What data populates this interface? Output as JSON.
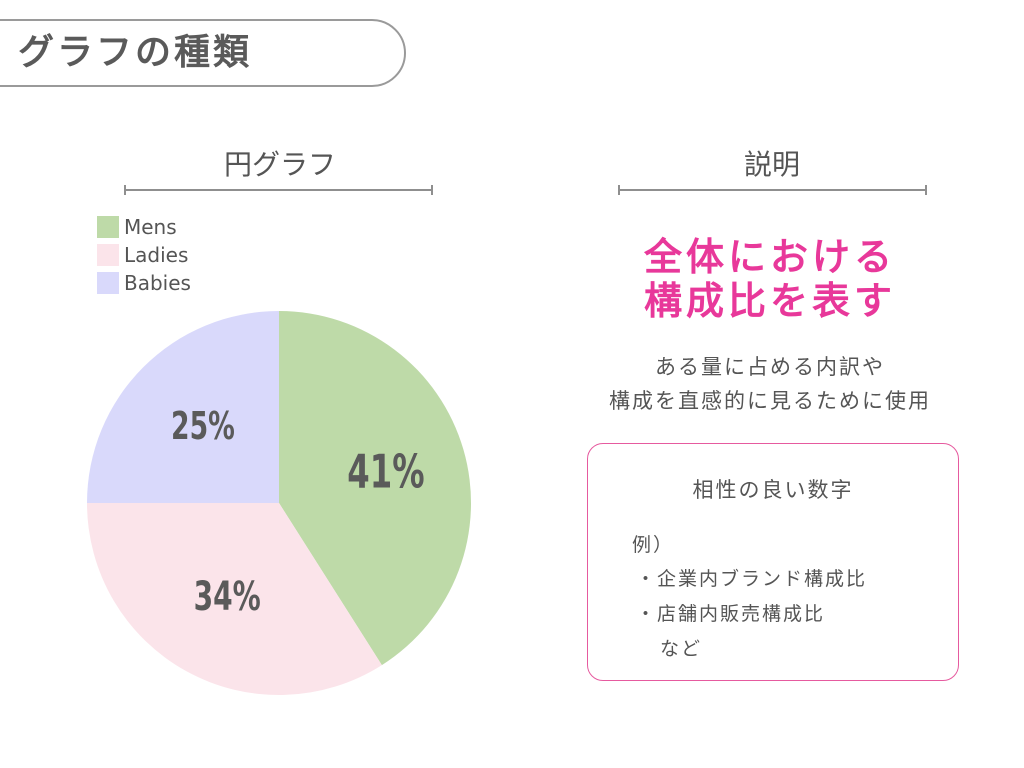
{
  "page": {
    "title": "グラフの種類"
  },
  "left_section": {
    "heading": "円グラフ"
  },
  "right_section": {
    "heading": "説明"
  },
  "chart_data": {
    "type": "pie",
    "title": "",
    "legend_position": "top-left",
    "slices": [
      {
        "name": "Mens",
        "value": 41,
        "label": "41%",
        "color": "#bedaa8"
      },
      {
        "name": "Ladies",
        "value": 34,
        "label": "34%",
        "color": "#fbe4ea"
      },
      {
        "name": "Babies",
        "value": 25,
        "label": "25%",
        "color": "#d9d9fb"
      }
    ]
  },
  "explanation": {
    "headline_line1": "全体における",
    "headline_line2": "構成比を表す",
    "desc_line1": "ある量に占める内訳や",
    "desc_line2": "構成を直感的に見るために使用"
  },
  "compatible_box": {
    "title": "相性の良い数字",
    "example_label": "例）",
    "items": [
      "・企業内ブランド構成比",
      "・店舗内販売構成比"
    ],
    "suffix": "など"
  },
  "colors": {
    "accent": "#e8389a",
    "border": "#e65a9f",
    "text": "#555555"
  }
}
